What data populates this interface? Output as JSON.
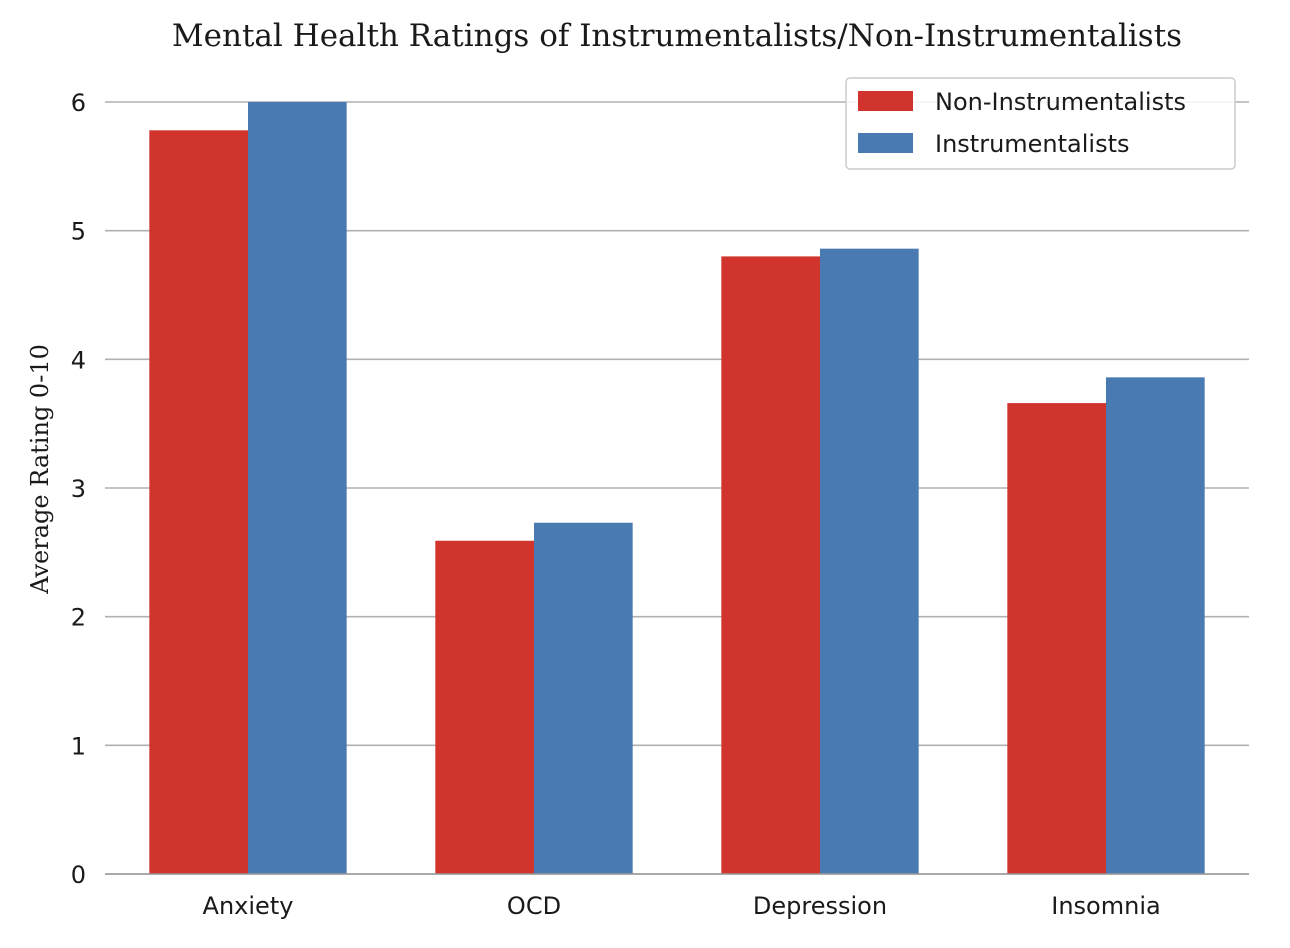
{
  "chart_data": {
    "type": "bar",
    "title": "Mental Health Ratings of Instrumentalists/Non-Instrumentalists",
    "xlabel": "",
    "ylabel": "Average Rating 0-10",
    "categories": [
      "Anxiety",
      "OCD",
      "Depression",
      "Insomnia"
    ],
    "series": [
      {
        "name": "Non-Instrumentalists",
        "color": "#d0342c",
        "values": [
          5.78,
          2.59,
          4.8,
          3.66
        ]
      },
      {
        "name": "Instrumentalists",
        "color": "#4a7ab2",
        "values": [
          6.0,
          2.73,
          4.86,
          3.86
        ]
      }
    ],
    "ylim": [
      0,
      6
    ],
    "yticks": [
      "0",
      "1",
      "2",
      "3",
      "4",
      "5",
      "6"
    ],
    "grid": "horizontal",
    "legend_position": "top-right"
  }
}
